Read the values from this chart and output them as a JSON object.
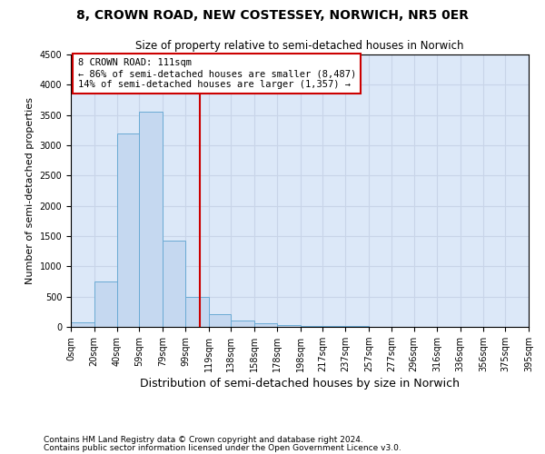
{
  "title": "8, CROWN ROAD, NEW COSTESSEY, NORWICH, NR5 0ER",
  "subtitle": "Size of property relative to semi-detached houses in Norwich",
  "xlabel": "Distribution of semi-detached houses by size in Norwich",
  "ylabel": "Number of semi-detached properties",
  "footnote1": "Contains HM Land Registry data © Crown copyright and database right 2024.",
  "footnote2": "Contains public sector information licensed under the Open Government Licence v3.0.",
  "annotation_title": "8 CROWN ROAD: 111sqm",
  "annotation_line1": "← 86% of semi-detached houses are smaller (8,487)",
  "annotation_line2": "14% of semi-detached houses are larger (1,357) →",
  "property_size": 111,
  "bin_edges": [
    0,
    20,
    40,
    59,
    79,
    99,
    119,
    138,
    158,
    178,
    198,
    217,
    237,
    257,
    277,
    296,
    316,
    336,
    356,
    375,
    395
  ],
  "bar_heights": [
    75,
    750,
    3200,
    3550,
    1420,
    500,
    215,
    100,
    65,
    30,
    20,
    15,
    10,
    5,
    5,
    3,
    2,
    2,
    1,
    1
  ],
  "bar_color": "#c5d8f0",
  "bar_edge_color": "#6aaad4",
  "vline_color": "#cc0000",
  "annotation_box_color": "#ffffff",
  "annotation_box_edge": "#cc0000",
  "grid_color": "#c8d4e8",
  "bg_color": "#dce8f8",
  "ylim": [
    0,
    4500
  ],
  "yticks": [
    0,
    500,
    1000,
    1500,
    2000,
    2500,
    3000,
    3500,
    4000,
    4500
  ],
  "title_fontsize": 10,
  "subtitle_fontsize": 8.5,
  "ylabel_fontsize": 8,
  "xlabel_fontsize": 9,
  "tick_fontsize": 7,
  "annotation_fontsize": 7.5,
  "footnote_fontsize": 6.5
}
